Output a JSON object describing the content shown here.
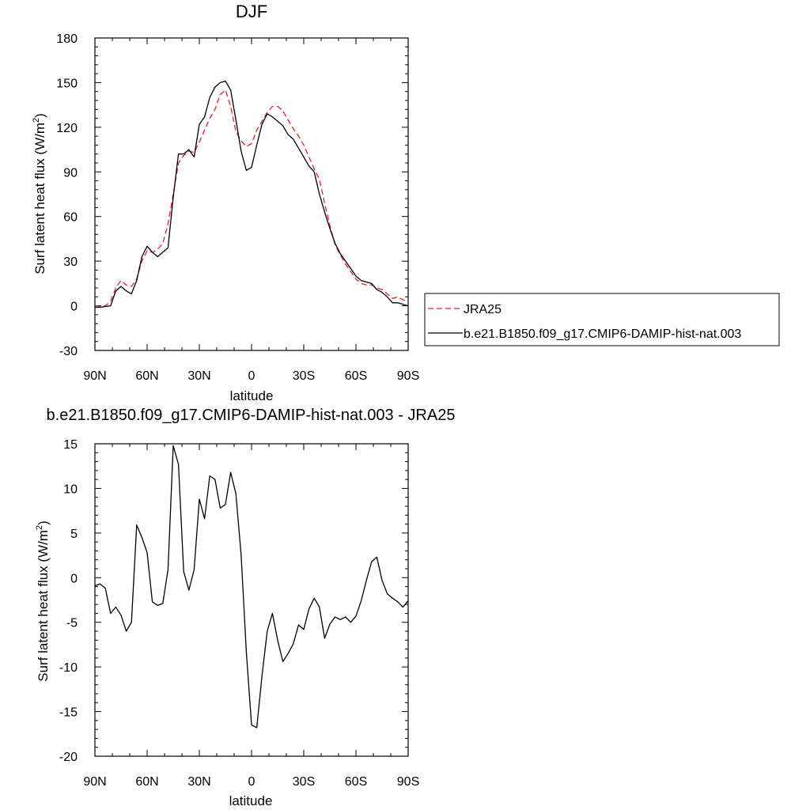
{
  "charts": [
    {
      "title": "DJF",
      "xlabel": "latitude",
      "ylabel_main": "Surf latent heat flux (W/m",
      "ylabel_sup": "2",
      "ylabel_tail": ")",
      "xtick_labels": [
        "90N",
        "60N",
        "30N",
        "0",
        "30S",
        "60S",
        "90S"
      ],
      "ytick_labels": [
        "-30",
        "0",
        "30",
        "60",
        "90",
        "120",
        "150",
        "180"
      ]
    },
    {
      "title": "b.e21.B1850.f09_g17.CMIP6-DAMIP-hist-nat.003 - JRA25",
      "xlabel": "latitude",
      "ylabel_main": "Surf latent heat flux (W/m",
      "ylabel_sup": "2",
      "ylabel_tail": ")",
      "xtick_labels": [
        "90N",
        "60N",
        "30N",
        "0",
        "30S",
        "60S",
        "90S"
      ],
      "ytick_labels": [
        "-20",
        "-15",
        "-10",
        "-5",
        "0",
        "5",
        "10",
        "15"
      ]
    }
  ],
  "legend": {
    "items": [
      {
        "label": "JRA25",
        "color": "#e8202a",
        "dash": "dashed"
      },
      {
        "label": "b.e21.B1850.f09_g17.CMIP6-DAMIP-hist-nat.003",
        "color": "#000000",
        "dash": "solid"
      }
    ]
  },
  "chart_data": [
    {
      "type": "line",
      "title": "DJF",
      "xlabel": "latitude",
      "ylabel": "Surf latent heat flux (W/m2)",
      "xlim": [
        90,
        -90
      ],
      "ylim": [
        -30,
        180
      ],
      "legend_position": "right",
      "grid": false,
      "series": [
        {
          "name": "JRA25",
          "color": "#e8202a",
          "style": "dashed",
          "x": [
            90,
            87,
            84,
            81,
            78,
            75,
            72,
            69,
            66,
            63,
            60,
            57,
            54,
            51,
            48,
            45,
            42,
            39,
            36,
            33,
            30,
            27,
            24,
            21,
            18,
            15,
            12,
            9,
            6,
            3,
            0,
            -3,
            -6,
            -9,
            -12,
            -15,
            -18,
            -21,
            -24,
            -27,
            -30,
            -33,
            -36,
            -39,
            -42,
            -45,
            -48,
            -51,
            -54,
            -57,
            -60,
            -63,
            -66,
            -69,
            -72,
            -75,
            -78,
            -81,
            -84,
            -87,
            -90
          ],
          "values": [
            0,
            -0.5,
            0,
            3,
            12,
            17,
            14,
            13,
            18,
            30,
            37,
            36,
            38,
            42,
            55,
            75,
            96,
            101,
            104,
            103,
            110,
            118,
            126,
            132,
            142,
            145,
            134,
            117,
            111,
            107,
            109,
            118,
            124,
            130,
            134,
            134,
            131,
            125,
            119,
            114,
            108,
            100,
            92,
            85,
            69,
            54,
            41,
            34,
            28,
            23,
            18,
            15,
            14,
            14,
            12,
            11,
            8,
            5,
            6,
            4,
            3
          ]
        },
        {
          "name": "b.e21.B1850.f09_g17.CMIP6-DAMIP-hist-nat.003",
          "color": "#000000",
          "style": "solid",
          "x": [
            90,
            87,
            84,
            81,
            78,
            75,
            72,
            69,
            66,
            63,
            60,
            57,
            54,
            51,
            48,
            45,
            42,
            39,
            36,
            33,
            30,
            27,
            24,
            21,
            18,
            15,
            12,
            9,
            6,
            3,
            0,
            -3,
            -6,
            -9,
            -12,
            -15,
            -18,
            -21,
            -24,
            -27,
            -30,
            -33,
            -36,
            -39,
            -42,
            -45,
            -48,
            -51,
            -54,
            -57,
            -60,
            -63,
            -66,
            -69,
            -72,
            -75,
            -78,
            -81,
            -84,
            -87,
            -90
          ],
          "values": [
            -1,
            -1,
            -0.5,
            0,
            10,
            13,
            10,
            8,
            17,
            33,
            40,
            36,
            33,
            36,
            39,
            73,
            102,
            102,
            105,
            100,
            122,
            127,
            140,
            147,
            150,
            151,
            145,
            125,
            104,
            91,
            93,
            108,
            122,
            129,
            127,
            124,
            121,
            115,
            112,
            106,
            100,
            94,
            90,
            75,
            63,
            52,
            42,
            35,
            30,
            25,
            20,
            17,
            16,
            15,
            11,
            9,
            6,
            2,
            2,
            1,
            0
          ]
        }
      ]
    },
    {
      "type": "line",
      "title": "b.e21.B1850.f09_g17.CMIP6-DAMIP-hist-nat.003 - JRA25",
      "xlabel": "latitude",
      "ylabel": "Surf latent heat flux (W/m2)",
      "xlim": [
        90,
        -90
      ],
      "ylim": [
        -20,
        15
      ],
      "grid": false,
      "series": [
        {
          "color": "#000000",
          "style": "solid",
          "x": [
            90,
            87,
            84,
            81,
            78,
            75,
            72,
            69,
            66,
            63,
            60,
            57,
            54,
            51,
            48,
            45,
            42,
            39,
            36,
            33,
            30,
            27,
            24,
            21,
            18,
            15,
            12,
            9,
            6,
            3,
            0,
            -3,
            -6,
            -9,
            -12,
            -15,
            -18,
            -21,
            -24,
            -27,
            -30,
            -33,
            -36,
            -39,
            -42,
            -45,
            -48,
            -51,
            -54,
            -57,
            -60,
            -63,
            -66,
            -69,
            -72,
            -75,
            -78,
            -81,
            -84,
            -87,
            -90
          ],
          "values": [
            -0.9,
            -0.7,
            -1.2,
            -4.0,
            -3.3,
            -4.2,
            -6.0,
            -5.0,
            5.9,
            4.5,
            2.8,
            -2.7,
            -3.1,
            -2.9,
            0.9,
            14.8,
            12.7,
            0.7,
            -1.4,
            0.9,
            8.8,
            6.6,
            11.4,
            11.0,
            7.8,
            8.2,
            11.8,
            9.4,
            2.6,
            -8.3,
            -16.5,
            -16.8,
            -11.0,
            -6.0,
            -4.0,
            -7.0,
            -9.4,
            -8.5,
            -7.4,
            -5.3,
            -5.8,
            -3.5,
            -2.3,
            -3.3,
            -6.8,
            -5.2,
            -4.4,
            -4.7,
            -4.4,
            -5.0,
            -4.3,
            -2.6,
            -0.3,
            1.8,
            2.3,
            -0.3,
            -1.8,
            -2.3,
            -2.7,
            -3.3,
            -2.6
          ]
        }
      ]
    }
  ]
}
